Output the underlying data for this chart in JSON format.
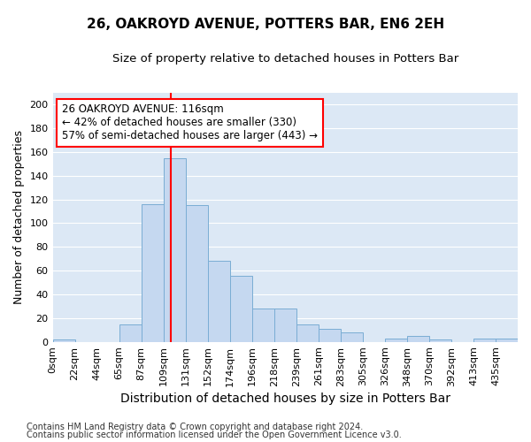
{
  "title": "26, OAKROYD AVENUE, POTTERS BAR, EN6 2EH",
  "subtitle": "Size of property relative to detached houses in Potters Bar",
  "xlabel": "Distribution of detached houses by size in Potters Bar",
  "ylabel": "Number of detached properties",
  "bar_color": "#c5d8f0",
  "bar_edge_color": "#7aadd4",
  "plot_bg_color": "#dce8f5",
  "fig_bg_color": "#ffffff",
  "grid_color": "#ffffff",
  "categories": [
    "0sqm",
    "22sqm",
    "44sqm",
    "65sqm",
    "87sqm",
    "109sqm",
    "131sqm",
    "152sqm",
    "174sqm",
    "196sqm",
    "218sqm",
    "239sqm",
    "261sqm",
    "283sqm",
    "305sqm",
    "326sqm",
    "348sqm",
    "370sqm",
    "392sqm",
    "413sqm",
    "435sqm"
  ],
  "values": [
    2,
    0,
    0,
    15,
    116,
    155,
    115,
    68,
    56,
    28,
    28,
    15,
    11,
    8,
    0,
    3,
    5,
    2,
    0,
    3,
    3
  ],
  "ylim": [
    0,
    210
  ],
  "yticks": [
    0,
    20,
    40,
    60,
    80,
    100,
    120,
    140,
    160,
    180,
    200
  ],
  "annotation_line1": "26 OAKROYD AVENUE: 116sqm",
  "annotation_line2": "← 42% of detached houses are smaller (330)",
  "annotation_line3": "57% of semi-detached houses are larger (443) →",
  "footnote1": "Contains HM Land Registry data © Crown copyright and database right 2024.",
  "footnote2": "Contains public sector information licensed under the Open Government Licence v3.0.",
  "title_fontsize": 11,
  "subtitle_fontsize": 9.5,
  "xlabel_fontsize": 10,
  "ylabel_fontsize": 9,
  "tick_fontsize": 8,
  "annotation_fontsize": 8.5,
  "footnote_fontsize": 7
}
